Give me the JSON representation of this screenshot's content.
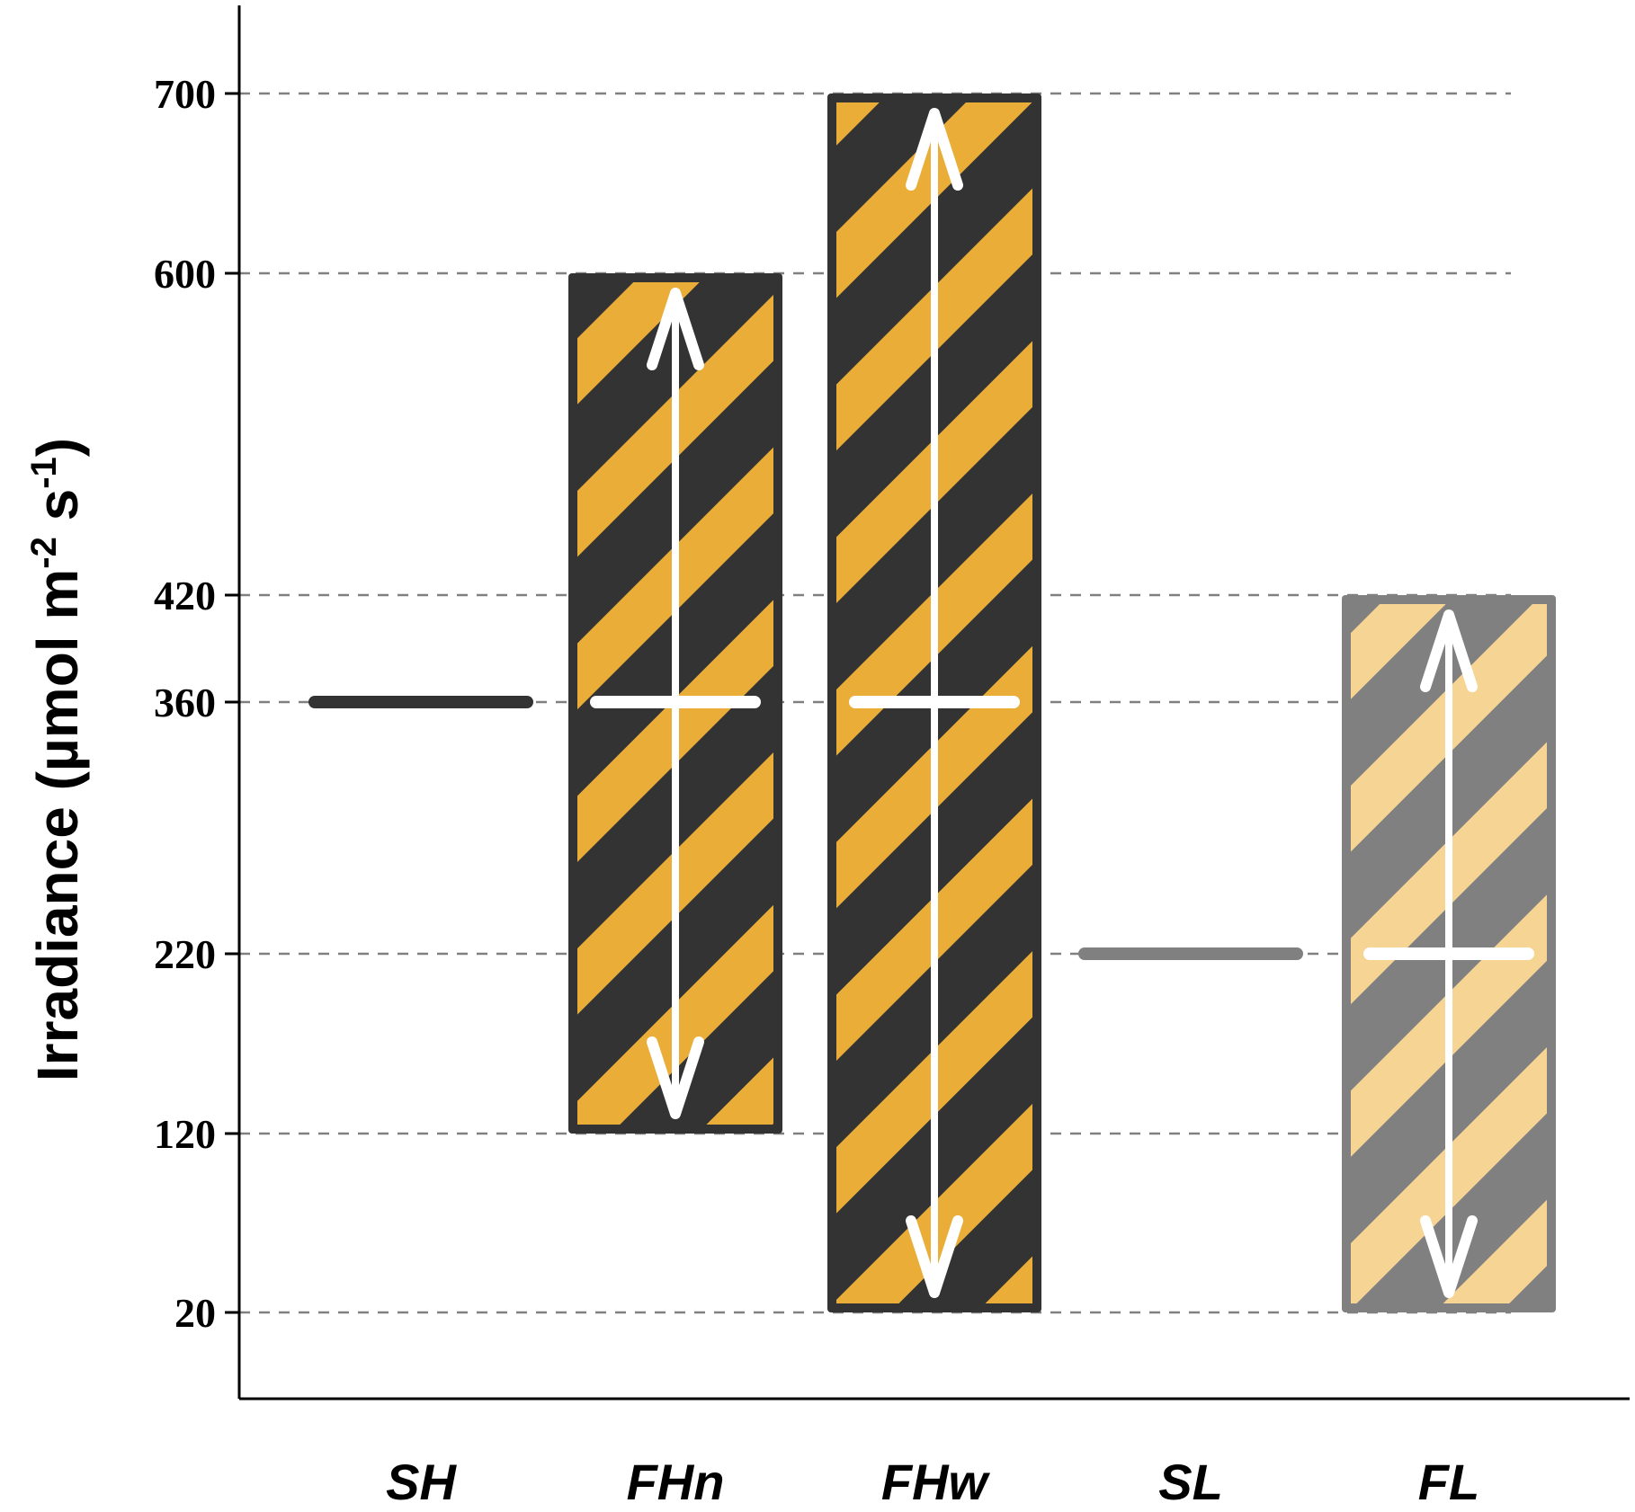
{
  "chart_data": {
    "type": "bar",
    "ylabel": {
      "main": "Irradiance (µmol m",
      "sup1": "-2",
      "mid": " s",
      "sup2": "-1",
      "end": ")"
    },
    "yticks": [
      20,
      120,
      220,
      360,
      420,
      600,
      700
    ],
    "categories": [
      "SH",
      "FHn",
      "FHw",
      "SL",
      "FL"
    ],
    "series": [
      {
        "category": "SH",
        "kind": "constant",
        "value": 360,
        "color": "#333333"
      },
      {
        "category": "FHn",
        "kind": "range",
        "low": 120,
        "high": 600,
        "mean": 360,
        "color": "#333333",
        "stripe_color": "#EAAE38"
      },
      {
        "category": "FHw",
        "kind": "range",
        "low": 20,
        "high": 700,
        "mean": 360,
        "color": "#333333",
        "stripe_color": "#EAAE38"
      },
      {
        "category": "SL",
        "kind": "constant",
        "value": 220,
        "color": "#808080"
      },
      {
        "category": "FL",
        "kind": "range",
        "low": 20,
        "high": 420,
        "mean": 220,
        "color": "#808080",
        "stripe_color": "#F6D494"
      }
    ],
    "grid": "dashed lines at tick values"
  }
}
